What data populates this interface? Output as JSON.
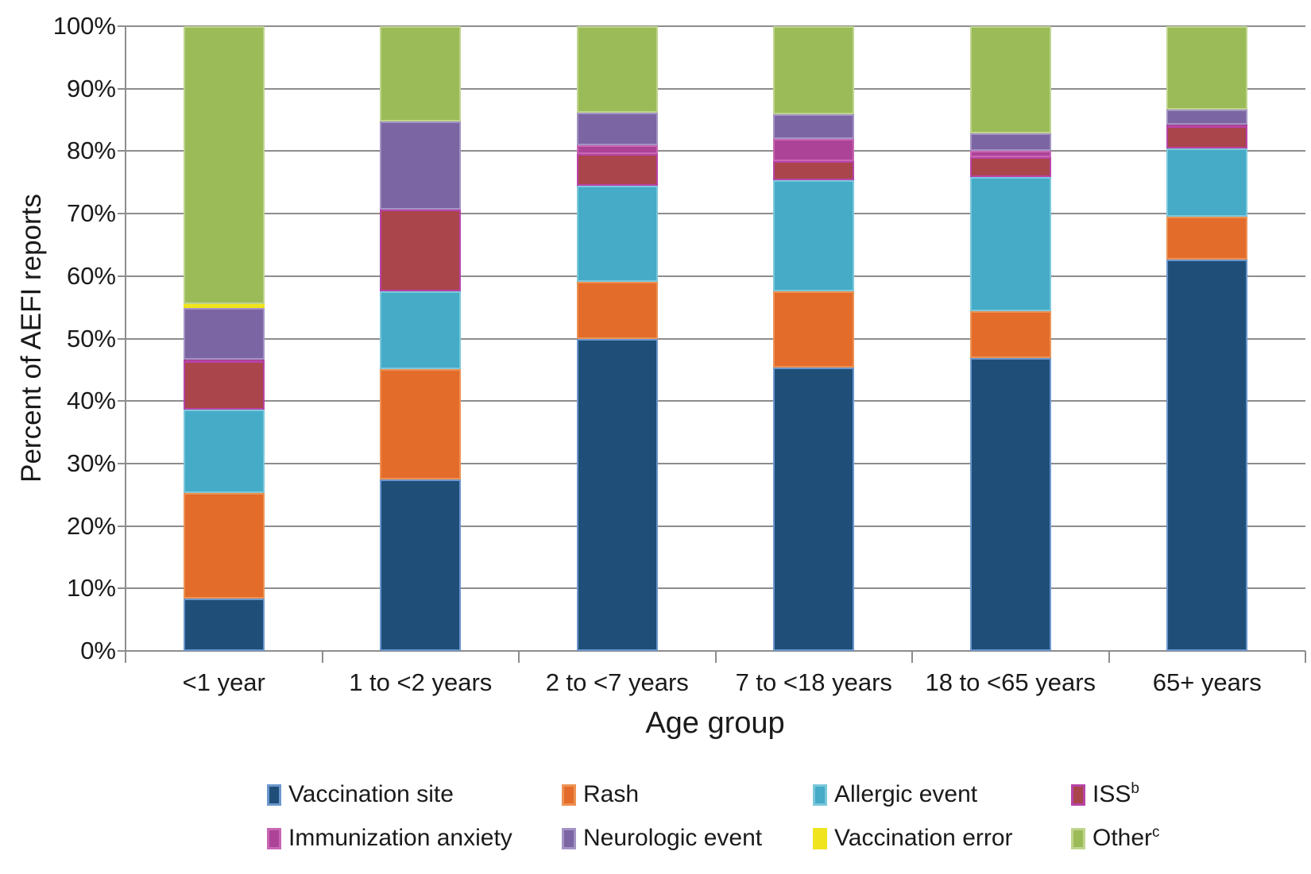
{
  "chart_data": {
    "type": "bar",
    "stacked": true,
    "orientation": "vertical",
    "grid": true,
    "legend_position": "bottom",
    "xlabel": "Age group",
    "ylabel": "Percent of AEFI reports",
    "ylim": [
      0,
      100
    ],
    "ytick_step": 10,
    "ytick_labels": [
      "0%",
      "10%",
      "20%",
      "30%",
      "40%",
      "50%",
      "60%",
      "70%",
      "80%",
      "90%",
      "100%"
    ],
    "categories": [
      "<1 year",
      "1 to <2 years",
      "2 to <7 years",
      "7 to <18 years",
      "18 to <65 years",
      "65+ years"
    ],
    "series": [
      {
        "label": "Vaccination site",
        "sup": "",
        "color": "#1F4E79",
        "border_color": "#6B97CD",
        "values": [
          8.4,
          27.5,
          49.9,
          45.4,
          46.9,
          62.7
        ]
      },
      {
        "label": "Rash",
        "sup": "",
        "color": "#E36C2A",
        "border_color": "#ED9254",
        "values": [
          16.9,
          17.6,
          9.2,
          12.1,
          7.5,
          6.8
        ]
      },
      {
        "label": "Allergic event",
        "sup": "",
        "color": "#45ABC7",
        "border_color": "#7BC8DB",
        "values": [
          13.3,
          12.4,
          15.4,
          17.8,
          21.4,
          10.9
        ]
      },
      {
        "label": "ISS",
        "sup": "b",
        "color": "#A9454B",
        "border_color": "#B844A8",
        "values": [
          7.8,
          13.2,
          5.0,
          3.1,
          3.2,
          3.6
        ]
      },
      {
        "label": "Immunization anxiety",
        "sup": "",
        "color": "#AD4397",
        "border_color": "#C867B4",
        "values": [
          0.2,
          0.0,
          1.5,
          3.6,
          1.1,
          0.3
        ]
      },
      {
        "label": "Neurologic event",
        "sup": "",
        "color": "#7C65A3",
        "border_color": "#A393C4",
        "values": [
          8.3,
          14.1,
          5.1,
          3.9,
          2.8,
          2.4
        ]
      },
      {
        "label": "Vaccination error",
        "sup": "",
        "color": "#F0E41E",
        "border_color": "#F0E41E",
        "values": [
          0.6,
          0.0,
          0.0,
          0.0,
          0.0,
          0.0
        ]
      },
      {
        "label": "Other",
        "sup": "c",
        "color": "#9BBB59",
        "border_color": "#BFD48D",
        "values": [
          44.5,
          15.2,
          13.9,
          14.1,
          17.1,
          13.3
        ]
      }
    ],
    "legend_rows": [
      [
        0,
        1,
        2,
        3
      ],
      [
        4,
        5,
        6,
        7
      ]
    ]
  },
  "colors": {
    "gridline": "#8D8D8D",
    "axis": "#8D8D8D",
    "text": "#1A1A1A",
    "background": "#FFFFFF"
  }
}
